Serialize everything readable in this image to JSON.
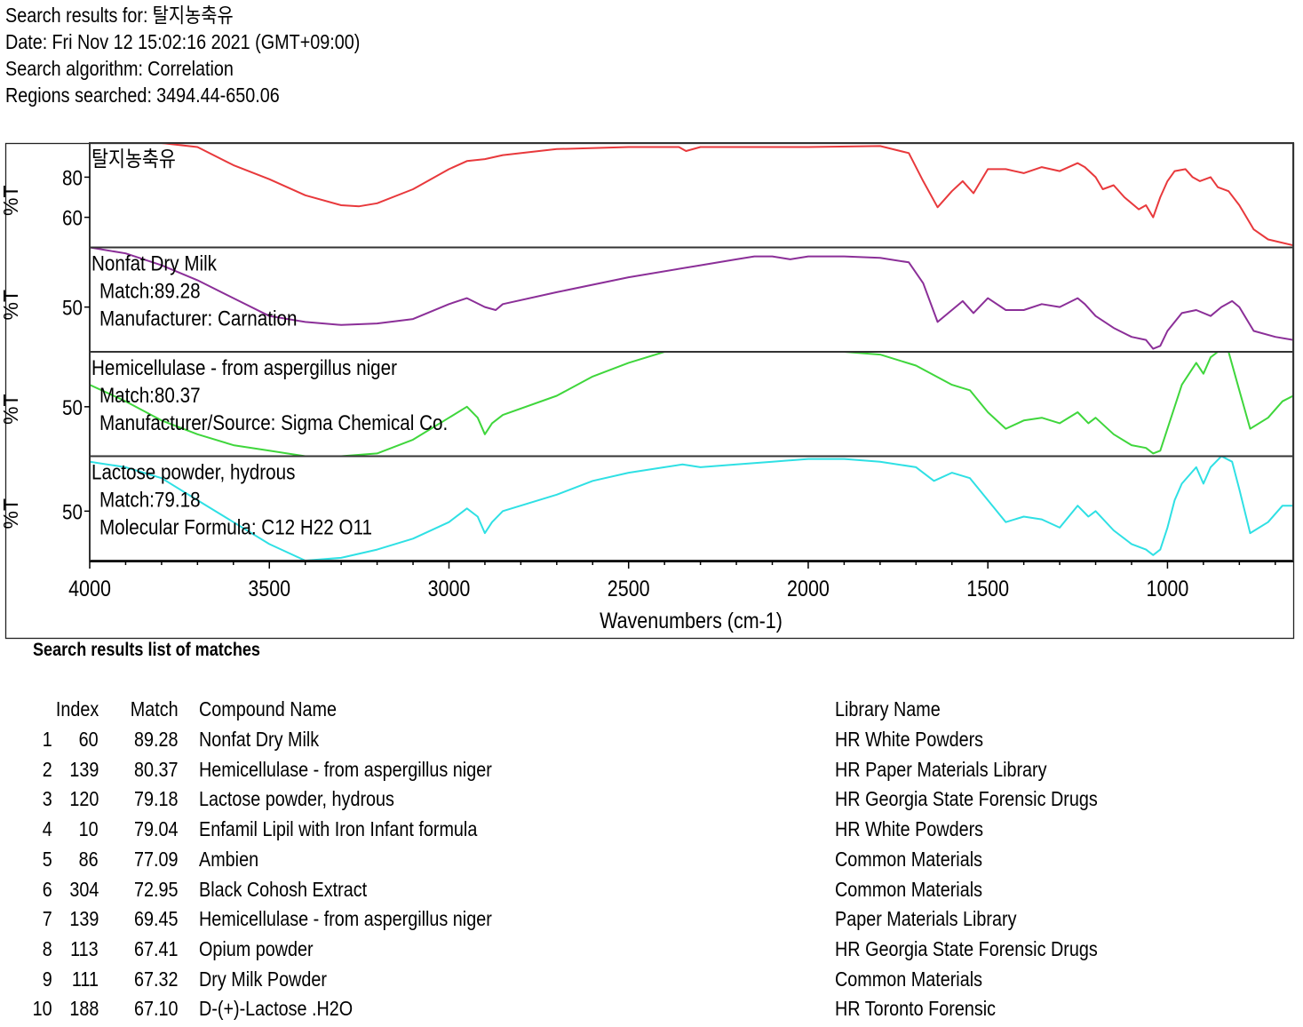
{
  "header": {
    "search_results_label": "Search results for:",
    "search_results_value": "탈지농축유",
    "date_label": "Date:",
    "date_value": "Fri Nov 12 15:02:16 2021 (GMT+09:00)",
    "algorithm_label": "Search algorithm:",
    "algorithm_value": "Correlation",
    "regions_label": "Regions searched:",
    "regions_value": "3494.44-650.06"
  },
  "chart_data": {
    "type": "line",
    "xlabel": "Wavenumbers (cm-1)",
    "xlim": [
      4000,
      650
    ],
    "x_ticks": [
      4000,
      3500,
      3000,
      2500,
      2000,
      1500,
      1000
    ],
    "x_tick_labels": [
      "4000",
      "3500",
      "3000",
      "2500",
      "2000",
      "1500",
      "1000"
    ],
    "ylabel": "%T",
    "panels": [
      {
        "color": "#e8393c",
        "ylim": [
          45,
          97
        ],
        "y_ticks": [
          60,
          80
        ],
        "y_tick_labels": [
          "60",
          "80"
        ],
        "labels": [
          "탈지농축유"
        ],
        "points": [
          [
            4000,
            97
          ],
          [
            3800,
            97
          ],
          [
            3700,
            95
          ],
          [
            3600,
            86
          ],
          [
            3500,
            79
          ],
          [
            3400,
            71
          ],
          [
            3300,
            66
          ],
          [
            3250,
            65.5
          ],
          [
            3200,
            67
          ],
          [
            3100,
            74
          ],
          [
            3000,
            84
          ],
          [
            2950,
            88
          ],
          [
            2900,
            89
          ],
          [
            2850,
            91
          ],
          [
            2700,
            94
          ],
          [
            2500,
            95
          ],
          [
            2360,
            95
          ],
          [
            2340,
            93
          ],
          [
            2300,
            95
          ],
          [
            2000,
            95
          ],
          [
            1800,
            95.5
          ],
          [
            1720,
            92
          ],
          [
            1680,
            78
          ],
          [
            1640,
            65
          ],
          [
            1600,
            73
          ],
          [
            1570,
            78
          ],
          [
            1540,
            72
          ],
          [
            1500,
            84
          ],
          [
            1450,
            84
          ],
          [
            1400,
            82
          ],
          [
            1350,
            85
          ],
          [
            1300,
            83
          ],
          [
            1250,
            87
          ],
          [
            1230,
            85
          ],
          [
            1200,
            80
          ],
          [
            1180,
            74
          ],
          [
            1150,
            76
          ],
          [
            1120,
            70
          ],
          [
            1080,
            64
          ],
          [
            1060,
            66
          ],
          [
            1040,
            60
          ],
          [
            1020,
            70
          ],
          [
            1000,
            78
          ],
          [
            980,
            83
          ],
          [
            950,
            84
          ],
          [
            930,
            80
          ],
          [
            910,
            78
          ],
          [
            880,
            80
          ],
          [
            860,
            75
          ],
          [
            830,
            73
          ],
          [
            800,
            66
          ],
          [
            760,
            54
          ],
          [
            720,
            49
          ],
          [
            650,
            46
          ]
        ]
      },
      {
        "color": "#8b2f98",
        "ylim": [
          35,
          70
        ],
        "y_ticks": [
          50
        ],
        "y_tick_labels": [
          "50"
        ],
        "labels": [
          "Nonfat Dry Milk",
          "Match:89.28",
          "Manufacturer:  Carnation"
        ],
        "points": [
          [
            4000,
            70
          ],
          [
            3900,
            68
          ],
          [
            3800,
            64
          ],
          [
            3700,
            59
          ],
          [
            3600,
            53
          ],
          [
            3500,
            47
          ],
          [
            3400,
            45
          ],
          [
            3300,
            44
          ],
          [
            3200,
            44.5
          ],
          [
            3100,
            46
          ],
          [
            3000,
            51
          ],
          [
            2950,
            53
          ],
          [
            2900,
            50
          ],
          [
            2870,
            49
          ],
          [
            2850,
            51
          ],
          [
            2700,
            55
          ],
          [
            2500,
            60
          ],
          [
            2300,
            64
          ],
          [
            2200,
            66
          ],
          [
            2150,
            67
          ],
          [
            2100,
            67
          ],
          [
            2050,
            66
          ],
          [
            2000,
            67
          ],
          [
            1900,
            67
          ],
          [
            1800,
            66.5
          ],
          [
            1720,
            65
          ],
          [
            1680,
            58
          ],
          [
            1640,
            45
          ],
          [
            1600,
            49
          ],
          [
            1570,
            52
          ],
          [
            1540,
            48
          ],
          [
            1500,
            53
          ],
          [
            1450,
            49
          ],
          [
            1400,
            49
          ],
          [
            1350,
            51
          ],
          [
            1300,
            50
          ],
          [
            1250,
            53
          ],
          [
            1230,
            51
          ],
          [
            1200,
            47
          ],
          [
            1150,
            43
          ],
          [
            1100,
            40
          ],
          [
            1060,
            39
          ],
          [
            1040,
            36
          ],
          [
            1020,
            37
          ],
          [
            1000,
            42
          ],
          [
            960,
            48
          ],
          [
            920,
            49
          ],
          [
            880,
            47
          ],
          [
            850,
            50
          ],
          [
            820,
            52
          ],
          [
            800,
            50
          ],
          [
            760,
            42
          ],
          [
            700,
            40
          ],
          [
            650,
            39
          ]
        ]
      },
      {
        "color": "#3fd63c",
        "ylim": [
          32,
          70
        ],
        "y_ticks": [
          50
        ],
        "y_tick_labels": [
          "50"
        ],
        "labels": [
          "Hemicellulase - from aspergillus niger",
          "Match:80.37",
          "Manufacturer/Source:  Sigma Chemical Co."
        ],
        "points": [
          [
            4000,
            58
          ],
          [
            3900,
            52
          ],
          [
            3800,
            45
          ],
          [
            3700,
            40
          ],
          [
            3600,
            36
          ],
          [
            3500,
            34
          ],
          [
            3400,
            32
          ],
          [
            3300,
            32
          ],
          [
            3200,
            33
          ],
          [
            3100,
            38
          ],
          [
            3000,
            46
          ],
          [
            2950,
            50
          ],
          [
            2920,
            46
          ],
          [
            2900,
            40
          ],
          [
            2880,
            44
          ],
          [
            2850,
            47
          ],
          [
            2700,
            54
          ],
          [
            2600,
            61
          ],
          [
            2500,
            66
          ],
          [
            2400,
            70
          ],
          [
            2300,
            70
          ],
          [
            2100,
            70
          ],
          [
            2000,
            70
          ],
          [
            1900,
            70
          ],
          [
            1800,
            69
          ],
          [
            1700,
            65
          ],
          [
            1600,
            58
          ],
          [
            1550,
            56
          ],
          [
            1500,
            48
          ],
          [
            1450,
            42
          ],
          [
            1400,
            45
          ],
          [
            1350,
            46
          ],
          [
            1300,
            44
          ],
          [
            1250,
            48
          ],
          [
            1220,
            44
          ],
          [
            1200,
            46
          ],
          [
            1150,
            40
          ],
          [
            1100,
            36
          ],
          [
            1060,
            35
          ],
          [
            1040,
            33
          ],
          [
            1020,
            34
          ],
          [
            1000,
            42
          ],
          [
            980,
            50
          ],
          [
            960,
            58
          ],
          [
            920,
            66
          ],
          [
            900,
            62
          ],
          [
            880,
            68
          ],
          [
            860,
            70
          ],
          [
            830,
            70
          ],
          [
            800,
            56
          ],
          [
            770,
            42
          ],
          [
            720,
            46
          ],
          [
            680,
            52
          ],
          [
            650,
            54
          ]
        ]
      },
      {
        "color": "#2fe0e4",
        "ylim": [
          32,
          70
        ],
        "y_ticks": [
          50
        ],
        "y_tick_labels": [
          "50"
        ],
        "labels": [
          "Lactose powder, hydrous",
          "Match:79.18",
          "Molecular Formula:  C12 H22 O11"
        ],
        "points": [
          [
            4000,
            68
          ],
          [
            3900,
            66
          ],
          [
            3800,
            62
          ],
          [
            3700,
            54
          ],
          [
            3600,
            46
          ],
          [
            3500,
            38
          ],
          [
            3400,
            32
          ],
          [
            3300,
            33
          ],
          [
            3200,
            36
          ],
          [
            3100,
            40
          ],
          [
            3000,
            46
          ],
          [
            2950,
            51
          ],
          [
            2920,
            48
          ],
          [
            2900,
            42
          ],
          [
            2880,
            46
          ],
          [
            2850,
            50
          ],
          [
            2700,
            56
          ],
          [
            2600,
            61
          ],
          [
            2500,
            64
          ],
          [
            2400,
            66
          ],
          [
            2350,
            67
          ],
          [
            2300,
            66
          ],
          [
            2200,
            67
          ],
          [
            2100,
            68
          ],
          [
            2000,
            69
          ],
          [
            1900,
            69
          ],
          [
            1800,
            68
          ],
          [
            1700,
            66
          ],
          [
            1650,
            61
          ],
          [
            1600,
            64
          ],
          [
            1550,
            62
          ],
          [
            1500,
            54
          ],
          [
            1450,
            46
          ],
          [
            1400,
            48
          ],
          [
            1350,
            47
          ],
          [
            1300,
            44
          ],
          [
            1250,
            52
          ],
          [
            1220,
            48
          ],
          [
            1200,
            50
          ],
          [
            1150,
            43
          ],
          [
            1100,
            38
          ],
          [
            1060,
            36
          ],
          [
            1040,
            34
          ],
          [
            1020,
            36
          ],
          [
            1000,
            44
          ],
          [
            980,
            54
          ],
          [
            960,
            60
          ],
          [
            920,
            66
          ],
          [
            900,
            60
          ],
          [
            880,
            66
          ],
          [
            850,
            70
          ],
          [
            820,
            68
          ],
          [
            800,
            58
          ],
          [
            770,
            42
          ],
          [
            720,
            46
          ],
          [
            680,
            52
          ],
          [
            650,
            52
          ]
        ]
      }
    ]
  },
  "results": {
    "title": "Search results list of matches",
    "columns": {
      "index": "Index",
      "match": "Match",
      "compound": "Compound Name",
      "library": "Library Name"
    },
    "rows": [
      {
        "rank": "1",
        "index": "60",
        "match": "89.28",
        "compound": "Nonfat Dry Milk",
        "library": "HR White Powders"
      },
      {
        "rank": "2",
        "index": "139",
        "match": "80.37",
        "compound": "Hemicellulase - from aspergillus niger",
        "library": "HR Paper Materials Library"
      },
      {
        "rank": "3",
        "index": "120",
        "match": "79.18",
        "compound": "Lactose powder, hydrous",
        "library": "HR Georgia State Forensic Drugs"
      },
      {
        "rank": "4",
        "index": "10",
        "match": "79.04",
        "compound": "Enfamil Lipil with Iron Infant formula",
        "library": "HR White Powders"
      },
      {
        "rank": "5",
        "index": "86",
        "match": "77.09",
        "compound": "Ambien",
        "library": "Common Materials"
      },
      {
        "rank": "6",
        "index": "304",
        "match": "72.95",
        "compound": "Black Cohosh Extract",
        "library": "Common Materials"
      },
      {
        "rank": "7",
        "index": "139",
        "match": "69.45",
        "compound": "Hemicellulase - from aspergillus niger",
        "library": "Paper Materials Library"
      },
      {
        "rank": "8",
        "index": "113",
        "match": "67.41",
        "compound": "Opium powder",
        "library": "HR Georgia State Forensic Drugs"
      },
      {
        "rank": "9",
        "index": "111",
        "match": "67.32",
        "compound": "Dry Milk Powder",
        "library": "Common Materials"
      },
      {
        "rank": "10",
        "index": "188",
        "match": "67.10",
        "compound": "D-(+)-Lactose .H2O",
        "library": "HR Toronto Forensic"
      }
    ]
  }
}
